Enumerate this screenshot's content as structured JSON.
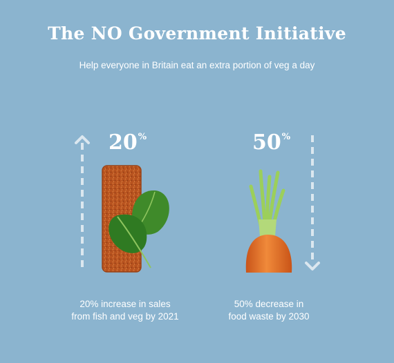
{
  "header": {
    "title": "The NO Government Initiative",
    "subtitle": "Help everyone in Britain eat an extra portion of veg a day"
  },
  "stats": [
    {
      "value": "20",
      "unit": "%",
      "direction": "increase",
      "caption_line1": "20% increase in sales",
      "caption_line2": "from fish and veg by 2021",
      "icon": "fish-finger-and-spinach"
    },
    {
      "value": "50",
      "unit": "%",
      "direction": "decrease",
      "caption_line1": "50% decrease in",
      "caption_line2": "food waste by 2030",
      "icon": "carrot"
    }
  ],
  "colors": {
    "background": "#8bb4cf",
    "text": "#ffffff",
    "arrow": "#dbe7ef",
    "fish_finger": "#b8531f",
    "spinach": "#3f8a2a",
    "carrot": "#e26a25",
    "carrot_tops": "#9ccf5a"
  }
}
